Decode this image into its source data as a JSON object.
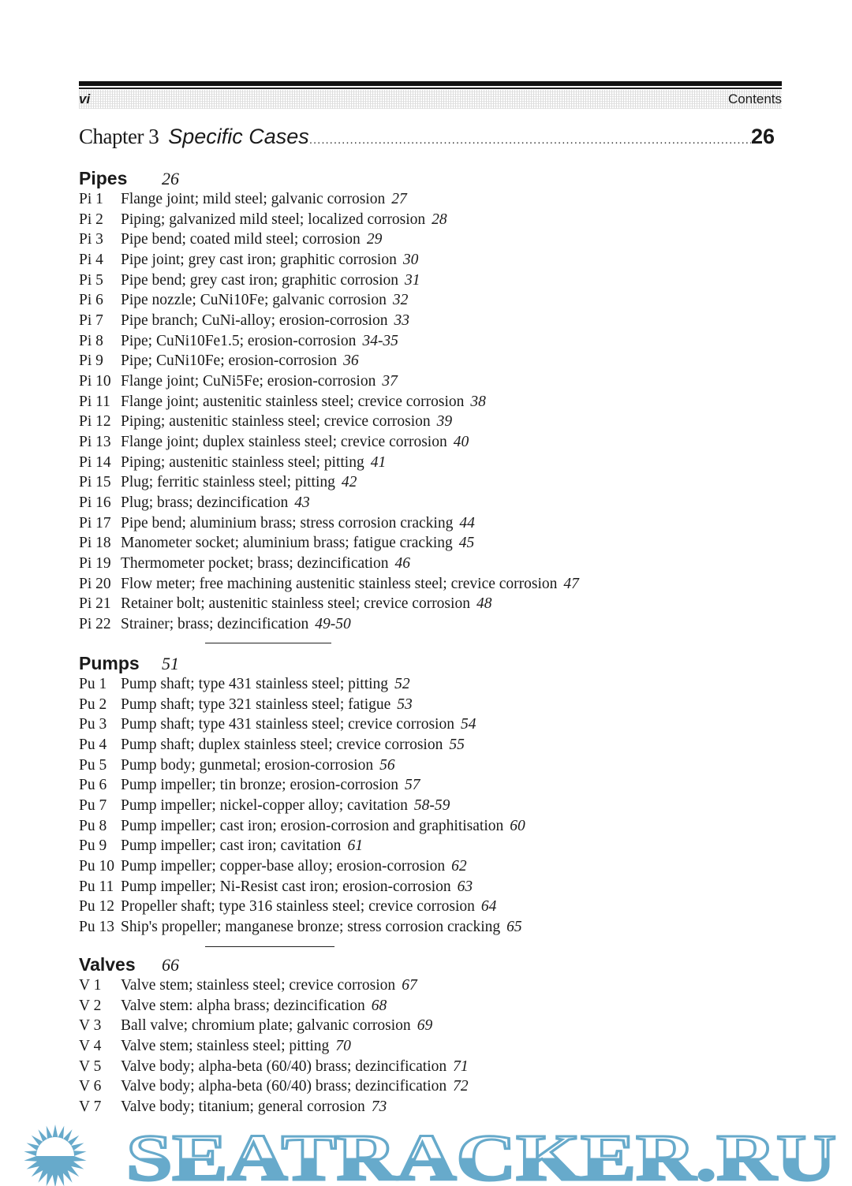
{
  "header": {
    "folio": "vi",
    "running_title": "Contents"
  },
  "chapter": {
    "label": "Chapter 3",
    "title": "Specific Cases",
    "page": "26"
  },
  "sections": [
    {
      "name": "Pipes",
      "page": "26",
      "entries": [
        {
          "code": "Pi 1",
          "text": "Flange joint; mild steel; galvanic corrosion",
          "page": "27"
        },
        {
          "code": "Pi 2",
          "text": "Piping; galvanized mild steel; localized corrosion",
          "page": "28"
        },
        {
          "code": "Pi 3",
          "text": "Pipe bend; coated mild steel; corrosion",
          "page": "29"
        },
        {
          "code": "Pi 4",
          "text": "Pipe joint; grey cast iron; graphitic corrosion",
          "page": "30"
        },
        {
          "code": "Pi 5",
          "text": "Pipe bend; grey cast iron; graphitic corrosion",
          "page": "31"
        },
        {
          "code": "Pi 6",
          "text": "Pipe nozzle; CuNi10Fe; galvanic corrosion",
          "page": "32"
        },
        {
          "code": "Pi 7",
          "text": "Pipe branch; CuNi-alloy; erosion-corrosion",
          "page": "33"
        },
        {
          "code": "Pi 8",
          "text": "Pipe; CuNi10Fe1.5; erosion-corrosion",
          "page": "34-35"
        },
        {
          "code": "Pi 9",
          "text": "Pipe; CuNi10Fe; erosion-corrosion",
          "page": "36"
        },
        {
          "code": "Pi 10",
          "text": "Flange joint; CuNi5Fe; erosion-corrosion",
          "page": "37"
        },
        {
          "code": "Pi 11",
          "text": "Flange joint; austenitic stainless steel; crevice corrosion",
          "page": "38"
        },
        {
          "code": "Pi 12",
          "text": "Piping; austenitic stainless steel; crevice corrosion",
          "page": "39"
        },
        {
          "code": "Pi 13",
          "text": "Flange joint; duplex stainless steel; crevice corrosion",
          "page": "40"
        },
        {
          "code": "Pi 14",
          "text": "Piping; austenitic stainless steel; pitting",
          "page": "41"
        },
        {
          "code": "Pi 15",
          "text": "Plug; ferritic stainless steel; pitting",
          "page": "42"
        },
        {
          "code": "Pi 16",
          "text": "Plug; brass; dezincification",
          "page": "43"
        },
        {
          "code": "Pi 17",
          "text": "Pipe bend; aluminium brass; stress corrosion cracking",
          "page": "44"
        },
        {
          "code": "Pi 18",
          "text": "Manometer socket; aluminium brass; fatigue cracking",
          "page": "45"
        },
        {
          "code": "Pi 19",
          "text": "Thermometer pocket; brass; dezincification",
          "page": "46"
        },
        {
          "code": "Pi 20",
          "text": "Flow meter; free machining austenitic stainless steel; crevice corrosion",
          "page": "47"
        },
        {
          "code": "Pi 21",
          "text": "Retainer bolt; austenitic stainless steel; crevice corrosion",
          "page": "48"
        },
        {
          "code": "Pi 22",
          "text": "Strainer; brass; dezincification",
          "page": "49-50"
        }
      ]
    },
    {
      "name": "Pumps",
      "page": "51",
      "entries": [
        {
          "code": "Pu 1",
          "text": "Pump shaft; type 431 stainless steel; pitting",
          "page": "52"
        },
        {
          "code": "Pu 2",
          "text": "Pump shaft; type 321 stainless steel; fatigue",
          "page": "53"
        },
        {
          "code": "Pu 3",
          "text": "Pump shaft; type 431 stainless steel; crevice corrosion",
          "page": "54"
        },
        {
          "code": "Pu 4",
          "text": "Pump shaft; duplex stainless steel; crevice corrosion",
          "page": "55"
        },
        {
          "code": "Pu 5",
          "text": "Pump body; gunmetal; erosion-corrosion",
          "page": "56"
        },
        {
          "code": "Pu 6",
          "text": "Pump impeller; tin bronze; erosion-corrosion",
          "page": "57"
        },
        {
          "code": "Pu 7",
          "text": "Pump impeller; nickel-copper alloy; cavitation",
          "page": "58-59"
        },
        {
          "code": "Pu 8",
          "text": "Pump impeller; cast iron; erosion-corrosion and graphitisation",
          "page": "60"
        },
        {
          "code": "Pu 9",
          "text": "Pump impeller; cast iron; cavitation",
          "page": "61"
        },
        {
          "code": "Pu 10",
          "text": "Pump impeller; copper-base alloy; erosion-corrosion",
          "page": "62"
        },
        {
          "code": "Pu 11",
          "text": "Pump impeller; Ni-Resist cast iron; erosion-corrosion",
          "page": "63"
        },
        {
          "code": "Pu 12",
          "text": "Propeller shaft; type 316 stainless steel; crevice corrosion",
          "page": "64"
        },
        {
          "code": "Pu 13",
          "text": "Ship's propeller; manganese bronze; stress corrosion cracking",
          "page": "65"
        }
      ]
    },
    {
      "name": "Valves",
      "page": "66",
      "entries": [
        {
          "code": "V 1",
          "text": "Valve stem; stainless steel; crevice corrosion",
          "page": "67"
        },
        {
          "code": "V 2",
          "text": "Valve stem: alpha brass; dezincification",
          "page": "68"
        },
        {
          "code": "V 3",
          "text": "Ball valve; chromium plate; galvanic corrosion",
          "page": "69"
        },
        {
          "code": "V 4",
          "text": "Valve stem; stainless steel; pitting",
          "page": "70"
        },
        {
          "code": "V 5",
          "text": "Valve body; alpha-beta (60/40) brass; dezincification",
          "page": "71"
        },
        {
          "code": "V 6",
          "text": "Valve body; alpha-beta (60/40) brass; dezincification",
          "page": "72"
        },
        {
          "code": "V 7",
          "text": "Valve body; titanium; general corrosion",
          "page": "73"
        }
      ]
    }
  ],
  "watermark": {
    "text": "SEATRACKER.RU",
    "color": "#67aacb"
  }
}
